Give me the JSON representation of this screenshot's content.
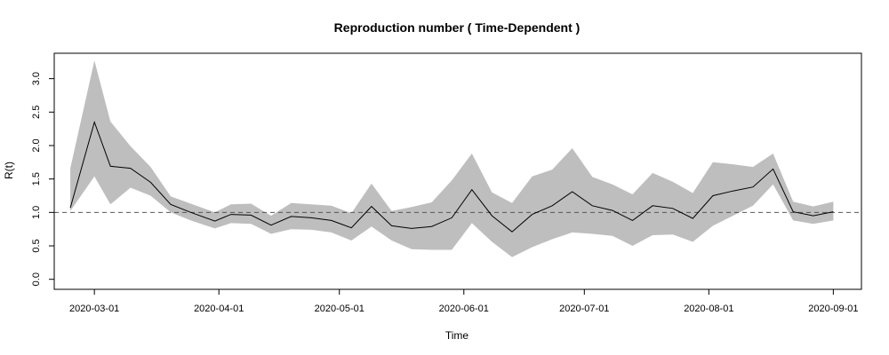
{
  "chart_data": {
    "type": "area",
    "title": "Reproduction number ( Time-Dependent )",
    "xlabel": "Time",
    "ylabel": "R(t)",
    "x_ticks": [
      "2020-03-01",
      "2020-04-01",
      "2020-05-01",
      "2020-06-01",
      "2020-07-01",
      "2020-08-01",
      "2020-09-01"
    ],
    "y_ticks": [
      "0.0",
      "0.5",
      "1.0",
      "1.5",
      "2.0",
      "2.5",
      "3.0"
    ],
    "xlim": [
      "2020-02-20",
      "2020-09-08"
    ],
    "ylim": [
      -0.15,
      3.38
    ],
    "reference_line": {
      "y": 1.0,
      "style": "dashed"
    },
    "band_color": "#bebebe",
    "line_color": "#000000",
    "grid": false,
    "series": [
      {
        "x": [
          "2020-02-24",
          "2020-03-01",
          "2020-03-05",
          "2020-03-10",
          "2020-03-15",
          "2020-03-20",
          "2020-03-25",
          "2020-03-31",
          "2020-04-04",
          "2020-04-09",
          "2020-04-14",
          "2020-04-19",
          "2020-04-24",
          "2020-04-29",
          "2020-05-04",
          "2020-05-09",
          "2020-05-14",
          "2020-05-19",
          "2020-05-24",
          "2020-05-29",
          "2020-06-03",
          "2020-06-08",
          "2020-06-13",
          "2020-06-18",
          "2020-06-23",
          "2020-06-28",
          "2020-07-03",
          "2020-07-08",
          "2020-07-13",
          "2020-07-18",
          "2020-07-23",
          "2020-07-28",
          "2020-08-02",
          "2020-08-07",
          "2020-08-12",
          "2020-08-17",
          "2020-08-22",
          "2020-08-27",
          "2020-09-01"
        ],
        "y": [
          1.07,
          2.35,
          1.69,
          1.66,
          1.45,
          1.12,
          1.0,
          0.87,
          0.97,
          0.96,
          0.81,
          0.94,
          0.92,
          0.88,
          0.77,
          1.09,
          0.8,
          0.76,
          0.79,
          0.92,
          1.34,
          0.95,
          0.71,
          0.97,
          1.1,
          1.31,
          1.1,
          1.03,
          0.88,
          1.1,
          1.06,
          0.91,
          1.25,
          1.32,
          1.38,
          1.65,
          1.01,
          0.95,
          1.01
        ],
        "lower": [
          1.02,
          1.54,
          1.12,
          1.37,
          1.25,
          1.0,
          0.88,
          0.76,
          0.84,
          0.83,
          0.68,
          0.75,
          0.74,
          0.7,
          0.58,
          0.79,
          0.58,
          0.45,
          0.44,
          0.44,
          0.84,
          0.56,
          0.33,
          0.48,
          0.6,
          0.7,
          0.68,
          0.65,
          0.5,
          0.66,
          0.67,
          0.56,
          0.8,
          0.95,
          1.1,
          1.42,
          0.88,
          0.83,
          0.88
        ],
        "upper": [
          1.66,
          3.27,
          2.36,
          1.99,
          1.68,
          1.24,
          1.13,
          1.0,
          1.12,
          1.13,
          0.95,
          1.14,
          1.12,
          1.1,
          0.99,
          1.43,
          1.02,
          1.08,
          1.15,
          1.48,
          1.88,
          1.3,
          1.14,
          1.54,
          1.64,
          1.96,
          1.53,
          1.42,
          1.27,
          1.59,
          1.46,
          1.29,
          1.75,
          1.72,
          1.68,
          1.88,
          1.16,
          1.09,
          1.16
        ]
      }
    ]
  }
}
